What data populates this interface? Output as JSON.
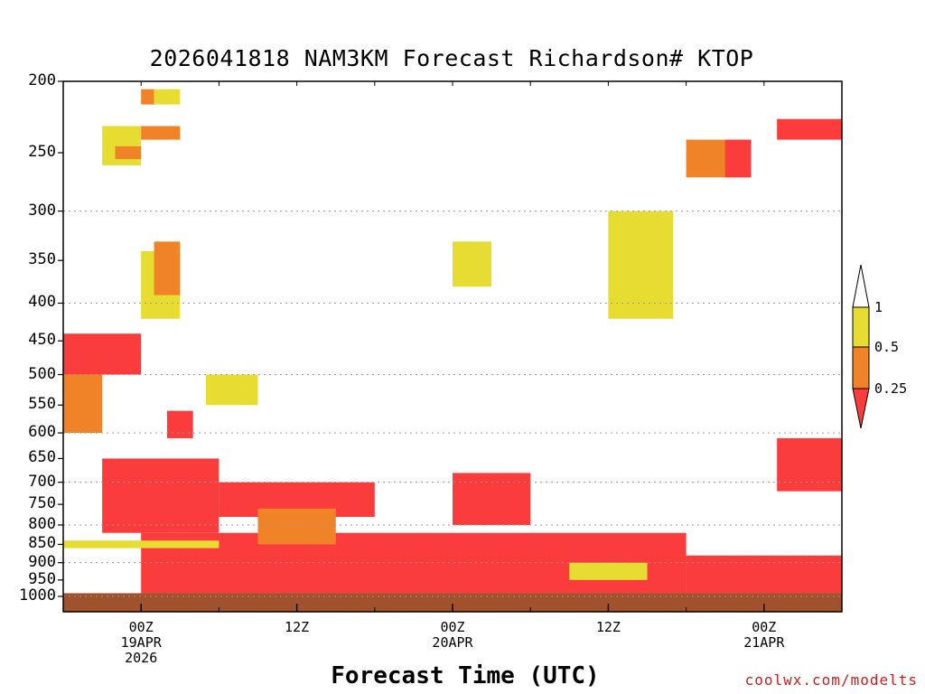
{
  "chart_data": {
    "type": "heatmap",
    "title": "2026041818 NAM3KM Forecast Richardson# KTOP",
    "subtitle": "",
    "xlabel": "Forecast Time (UTC)",
    "ylabel": "",
    "y_scale": "log-pressure",
    "y_range_hpa": [
      1020,
      200
    ],
    "y_ticks": [
      200,
      250,
      300,
      350,
      400,
      450,
      500,
      550,
      600,
      650,
      700,
      750,
      800,
      850,
      900,
      950,
      1000
    ],
    "y_gridlines": [
      300,
      400,
      500,
      600,
      700,
      800,
      900,
      1000
    ],
    "x_start": "2026-04-18 18Z",
    "x_end": "2026-04-21 06Z",
    "x_ticks": [
      {
        "time": "2026-04-19 00Z",
        "lines": [
          "00Z",
          "19APR",
          "2026"
        ]
      },
      {
        "time": "2026-04-19 12Z",
        "lines": [
          "12Z"
        ]
      },
      {
        "time": "2026-04-20 00Z",
        "lines": [
          "00Z",
          "20APR"
        ]
      },
      {
        "time": "2026-04-20 12Z",
        "lines": [
          "12Z"
        ]
      },
      {
        "time": "2026-04-21 00Z",
        "lines": [
          "00Z",
          "21APR"
        ]
      }
    ],
    "legend": {
      "placement": "right",
      "thresholds": [
        "1",
        "0.5",
        "0.25"
      ],
      "bins": [
        {
          "range": "> 1",
          "color": "#ffffff"
        },
        {
          "range": "0.5 – 1",
          "color": "#e6dc32"
        },
        {
          "range": "0.25 – 0.5",
          "color": "#f08228"
        },
        {
          "range": "< 0.25",
          "color": "#fa3c3c"
        }
      ]
    },
    "ground_fill_below_hpa": 990,
    "ground_color": "#a0522d",
    "regions": [
      {
        "t": [
          "2026-04-18 21Z",
          "2026-04-19 00Z"
        ],
        "p": [
          260,
          230
        ],
        "bin": "0.5 – 1"
      },
      {
        "t": [
          "2026-04-18 22Z",
          "2026-04-19 00Z"
        ],
        "p": [
          255,
          245
        ],
        "bin": "0.25 – 0.5"
      },
      {
        "t": [
          "2026-04-19 00Z",
          "2026-04-19 01Z"
        ],
        "p": [
          215,
          205
        ],
        "bin": "0.25 – 0.5"
      },
      {
        "t": [
          "2026-04-19 00Z",
          "2026-04-19 03Z"
        ],
        "p": [
          240,
          230
        ],
        "bin": "0.25 – 0.5"
      },
      {
        "t": [
          "2026-04-19 01Z",
          "2026-04-19 03Z"
        ],
        "p": [
          215,
          205
        ],
        "bin": "0.5 – 1"
      },
      {
        "t": [
          "2026-04-18 18Z",
          "2026-04-19 00Z"
        ],
        "p": [
          500,
          440
        ],
        "bin": "< 0.25"
      },
      {
        "t": [
          "2026-04-19 00Z",
          "2026-04-19 03Z"
        ],
        "p": [
          420,
          340
        ],
        "bin": "0.5 – 1"
      },
      {
        "t": [
          "2026-04-19 01Z",
          "2026-04-19 03Z"
        ],
        "p": [
          390,
          330
        ],
        "bin": "0.25 – 0.5"
      },
      {
        "t": [
          "2026-04-18 18Z",
          "2026-04-18 21Z"
        ],
        "p": [
          600,
          500
        ],
        "bin": "0.25 – 0.5"
      },
      {
        "t": [
          "2026-04-19 02Z",
          "2026-04-19 04Z"
        ],
        "p": [
          610,
          560
        ],
        "bin": "< 0.25"
      },
      {
        "t": [
          "2026-04-19 05Z",
          "2026-04-19 09Z"
        ],
        "p": [
          550,
          500
        ],
        "bin": "0.5 – 1"
      },
      {
        "t": [
          "2026-04-20 00Z",
          "2026-04-20 03Z"
        ],
        "p": [
          380,
          330
        ],
        "bin": "0.5 – 1"
      },
      {
        "t": [
          "2026-04-20 12Z",
          "2026-04-20 17Z"
        ],
        "p": [
          420,
          300
        ],
        "bin": "0.5 – 1"
      },
      {
        "t": [
          "2026-04-20 18Z",
          "2026-04-20 23Z"
        ],
        "p": [
          270,
          240
        ],
        "bin": "0.25 – 0.5"
      },
      {
        "t": [
          "2026-04-20 21Z",
          "2026-04-20 23Z"
        ],
        "p": [
          270,
          240
        ],
        "bin": "< 0.25"
      },
      {
        "t": [
          "2026-04-21 01Z",
          "2026-04-21 06Z"
        ],
        "p": [
          240,
          225
        ],
        "bin": "< 0.25"
      },
      {
        "t": [
          "2026-04-19 00Z",
          "2026-04-20 18Z"
        ],
        "p": [
          990,
          820
        ],
        "bin": "< 0.25"
      },
      {
        "t": [
          "2026-04-18 21Z",
          "2026-04-19 06Z"
        ],
        "p": [
          820,
          650
        ],
        "bin": "< 0.25"
      },
      {
        "t": [
          "2026-04-19 06Z",
          "2026-04-19 18Z"
        ],
        "p": [
          780,
          700
        ],
        "bin": "< 0.25"
      },
      {
        "t": [
          "2026-04-20 00Z",
          "2026-04-20 06Z"
        ],
        "p": [
          800,
          680
        ],
        "bin": "< 0.25"
      },
      {
        "t": [
          "2026-04-20 18Z",
          "2026-04-21 06Z"
        ],
        "p": [
          990,
          880
        ],
        "bin": "< 0.25"
      },
      {
        "t": [
          "2026-04-21 01Z",
          "2026-04-21 06Z"
        ],
        "p": [
          720,
          610
        ],
        "bin": "< 0.25"
      },
      {
        "t": [
          "2026-04-19 09Z",
          "2026-04-19 15Z"
        ],
        "p": [
          850,
          760
        ],
        "bin": "0.25 – 0.5"
      },
      {
        "t": [
          "2026-04-20 09Z",
          "2026-04-20 15Z"
        ],
        "p": [
          950,
          900
        ],
        "bin": "0.5 – 1"
      },
      {
        "t": [
          "2026-04-18 18Z",
          "2026-04-19 06Z"
        ],
        "p": [
          860,
          840
        ],
        "bin": "0.5 – 1"
      }
    ]
  }
}
